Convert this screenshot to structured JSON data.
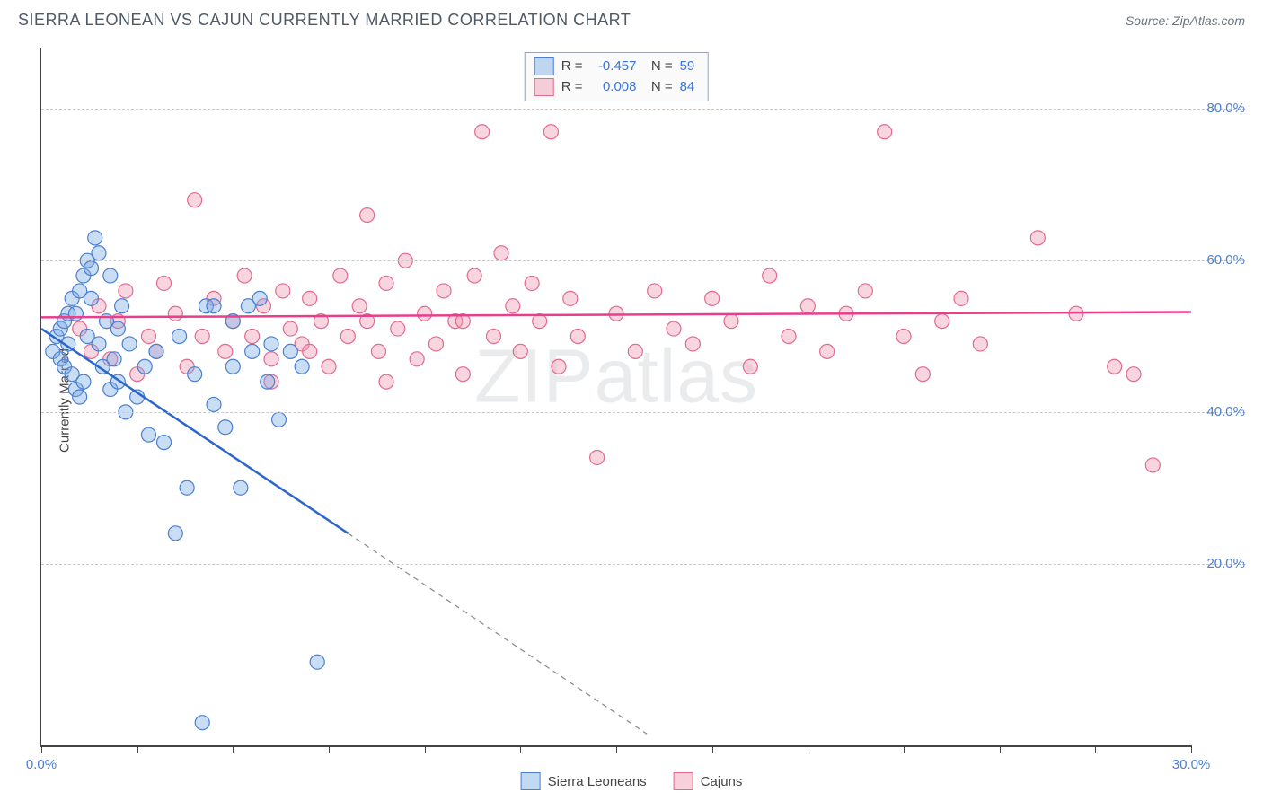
{
  "header": {
    "title": "SIERRA LEONEAN VS CAJUN CURRENTLY MARRIED CORRELATION CHART",
    "source": "Source: ZipAtlas.com"
  },
  "chart": {
    "type": "scatter",
    "y_axis_title": "Currently Married",
    "watermark": "ZIPatlas",
    "xlim": [
      0,
      30
    ],
    "ylim": [
      -4,
      88
    ],
    "x_ticks": [
      0,
      2.5,
      5,
      7.5,
      10,
      12.5,
      15,
      17.5,
      20,
      22.5,
      25,
      27.5,
      30
    ],
    "x_tick_labels": {
      "0": "0.0%",
      "30": "30.0%"
    },
    "y_gridlines": [
      20,
      40,
      60,
      80
    ],
    "y_tick_labels": {
      "20": "20.0%",
      "40": "40.0%",
      "60": "60.0%",
      "80": "80.0%"
    },
    "background_color": "#ffffff",
    "grid_color": "#c7c7c7",
    "marker_radius": 8,
    "series": [
      {
        "key": "sierra_leoneans",
        "label": "Sierra Leoneans",
        "fill": "rgba(120,170,230,0.40)",
        "stroke": "#4b7fd1",
        "trend_color": "#2d66c9",
        "trend": {
          "x1": 0,
          "y1": 51,
          "x2": 8,
          "y2": 24,
          "solid_end_x": 8,
          "dash_end_x": 15.8,
          "dash_end_y": -2.5
        },
        "R": "-0.457",
        "N": "59",
        "points": [
          [
            0.3,
            48
          ],
          [
            0.4,
            50
          ],
          [
            0.5,
            47
          ],
          [
            0.5,
            51
          ],
          [
            0.6,
            46
          ],
          [
            0.6,
            52
          ],
          [
            0.7,
            49
          ],
          [
            0.7,
            53
          ],
          [
            0.8,
            45
          ],
          [
            0.8,
            55
          ],
          [
            0.9,
            43
          ],
          [
            0.9,
            53
          ],
          [
            1.0,
            42
          ],
          [
            1.0,
            56
          ],
          [
            1.1,
            44
          ],
          [
            1.1,
            58
          ],
          [
            1.2,
            50
          ],
          [
            1.2,
            60
          ],
          [
            1.3,
            55
          ],
          [
            1.3,
            59
          ],
          [
            1.4,
            63
          ],
          [
            1.5,
            61
          ],
          [
            1.5,
            49
          ],
          [
            1.6,
            46
          ],
          [
            1.7,
            52
          ],
          [
            1.8,
            43
          ],
          [
            1.8,
            58
          ],
          [
            1.9,
            47
          ],
          [
            2.0,
            51
          ],
          [
            2.0,
            44
          ],
          [
            2.1,
            54
          ],
          [
            2.2,
            40
          ],
          [
            2.3,
            49
          ],
          [
            2.5,
            42
          ],
          [
            2.7,
            46
          ],
          [
            2.8,
            37
          ],
          [
            3.0,
            48
          ],
          [
            3.2,
            36
          ],
          [
            3.5,
            24
          ],
          [
            3.6,
            50
          ],
          [
            3.8,
            30
          ],
          [
            4.0,
            45
          ],
          [
            4.2,
            -1
          ],
          [
            4.3,
            54
          ],
          [
            4.5,
            41
          ],
          [
            4.8,
            38
          ],
          [
            5.0,
            46
          ],
          [
            5.2,
            30
          ],
          [
            5.4,
            54
          ],
          [
            5.5,
            48
          ],
          [
            5.7,
            55
          ],
          [
            5.9,
            44
          ],
          [
            6.2,
            39
          ],
          [
            6.5,
            48
          ],
          [
            6.8,
            46
          ],
          [
            7.2,
            7
          ],
          [
            6.0,
            49
          ],
          [
            5.0,
            52
          ],
          [
            4.5,
            54
          ]
        ]
      },
      {
        "key": "cajuns",
        "label": "Cajuns",
        "fill": "rgba(240,150,175,0.40)",
        "stroke": "#e26a8f",
        "trend_color": "#e83e8c",
        "trend": {
          "x1": 0,
          "y1": 52.5,
          "x2": 30,
          "y2": 53.2,
          "solid_end_x": 30
        },
        "R": "0.008",
        "N": "84",
        "points": [
          [
            1.0,
            51
          ],
          [
            1.3,
            48
          ],
          [
            1.5,
            54
          ],
          [
            1.8,
            47
          ],
          [
            2.0,
            52
          ],
          [
            2.2,
            56
          ],
          [
            2.5,
            45
          ],
          [
            2.8,
            50
          ],
          [
            3.0,
            48
          ],
          [
            3.2,
            57
          ],
          [
            3.5,
            53
          ],
          [
            3.8,
            46
          ],
          [
            4.0,
            68
          ],
          [
            4.2,
            50
          ],
          [
            4.5,
            55
          ],
          [
            4.8,
            48
          ],
          [
            5.0,
            52
          ],
          [
            5.3,
            58
          ],
          [
            5.5,
            50
          ],
          [
            5.8,
            54
          ],
          [
            6.0,
            47
          ],
          [
            6.3,
            56
          ],
          [
            6.5,
            51
          ],
          [
            6.8,
            49
          ],
          [
            7.0,
            55
          ],
          [
            7.3,
            52
          ],
          [
            7.5,
            46
          ],
          [
            7.8,
            58
          ],
          [
            8.0,
            50
          ],
          [
            8.3,
            54
          ],
          [
            8.5,
            66
          ],
          [
            8.8,
            48
          ],
          [
            9.0,
            57
          ],
          [
            9.3,
            51
          ],
          [
            9.5,
            60
          ],
          [
            9.8,
            47
          ],
          [
            10.0,
            53
          ],
          [
            10.3,
            49
          ],
          [
            10.5,
            56
          ],
          [
            10.8,
            52
          ],
          [
            11.0,
            45
          ],
          [
            11.3,
            58
          ],
          [
            11.5,
            77
          ],
          [
            11.8,
            50
          ],
          [
            12.0,
            61
          ],
          [
            12.3,
            54
          ],
          [
            12.5,
            48
          ],
          [
            12.8,
            57
          ],
          [
            13.0,
            52
          ],
          [
            13.3,
            77
          ],
          [
            13.5,
            46
          ],
          [
            13.8,
            55
          ],
          [
            14.0,
            50
          ],
          [
            14.5,
            34
          ],
          [
            15.0,
            53
          ],
          [
            15.5,
            48
          ],
          [
            16.0,
            56
          ],
          [
            16.5,
            51
          ],
          [
            17.0,
            49
          ],
          [
            17.5,
            55
          ],
          [
            18.0,
            52
          ],
          [
            18.5,
            46
          ],
          [
            19.0,
            58
          ],
          [
            19.5,
            50
          ],
          [
            20.0,
            54
          ],
          [
            20.5,
            48
          ],
          [
            21.0,
            53
          ],
          [
            21.5,
            56
          ],
          [
            22.0,
            77
          ],
          [
            22.5,
            50
          ],
          [
            23.0,
            45
          ],
          [
            23.5,
            52
          ],
          [
            24.0,
            55
          ],
          [
            24.5,
            49
          ],
          [
            26.0,
            63
          ],
          [
            27.0,
            53
          ],
          [
            28.0,
            46
          ],
          [
            28.5,
            45
          ],
          [
            29.0,
            33
          ],
          [
            9.0,
            44
          ],
          [
            7.0,
            48
          ],
          [
            6.0,
            44
          ],
          [
            8.5,
            52
          ],
          [
            11.0,
            52
          ]
        ]
      }
    ]
  },
  "legend": {
    "series1_label": "Sierra Leoneans",
    "series2_label": "Cajuns"
  }
}
